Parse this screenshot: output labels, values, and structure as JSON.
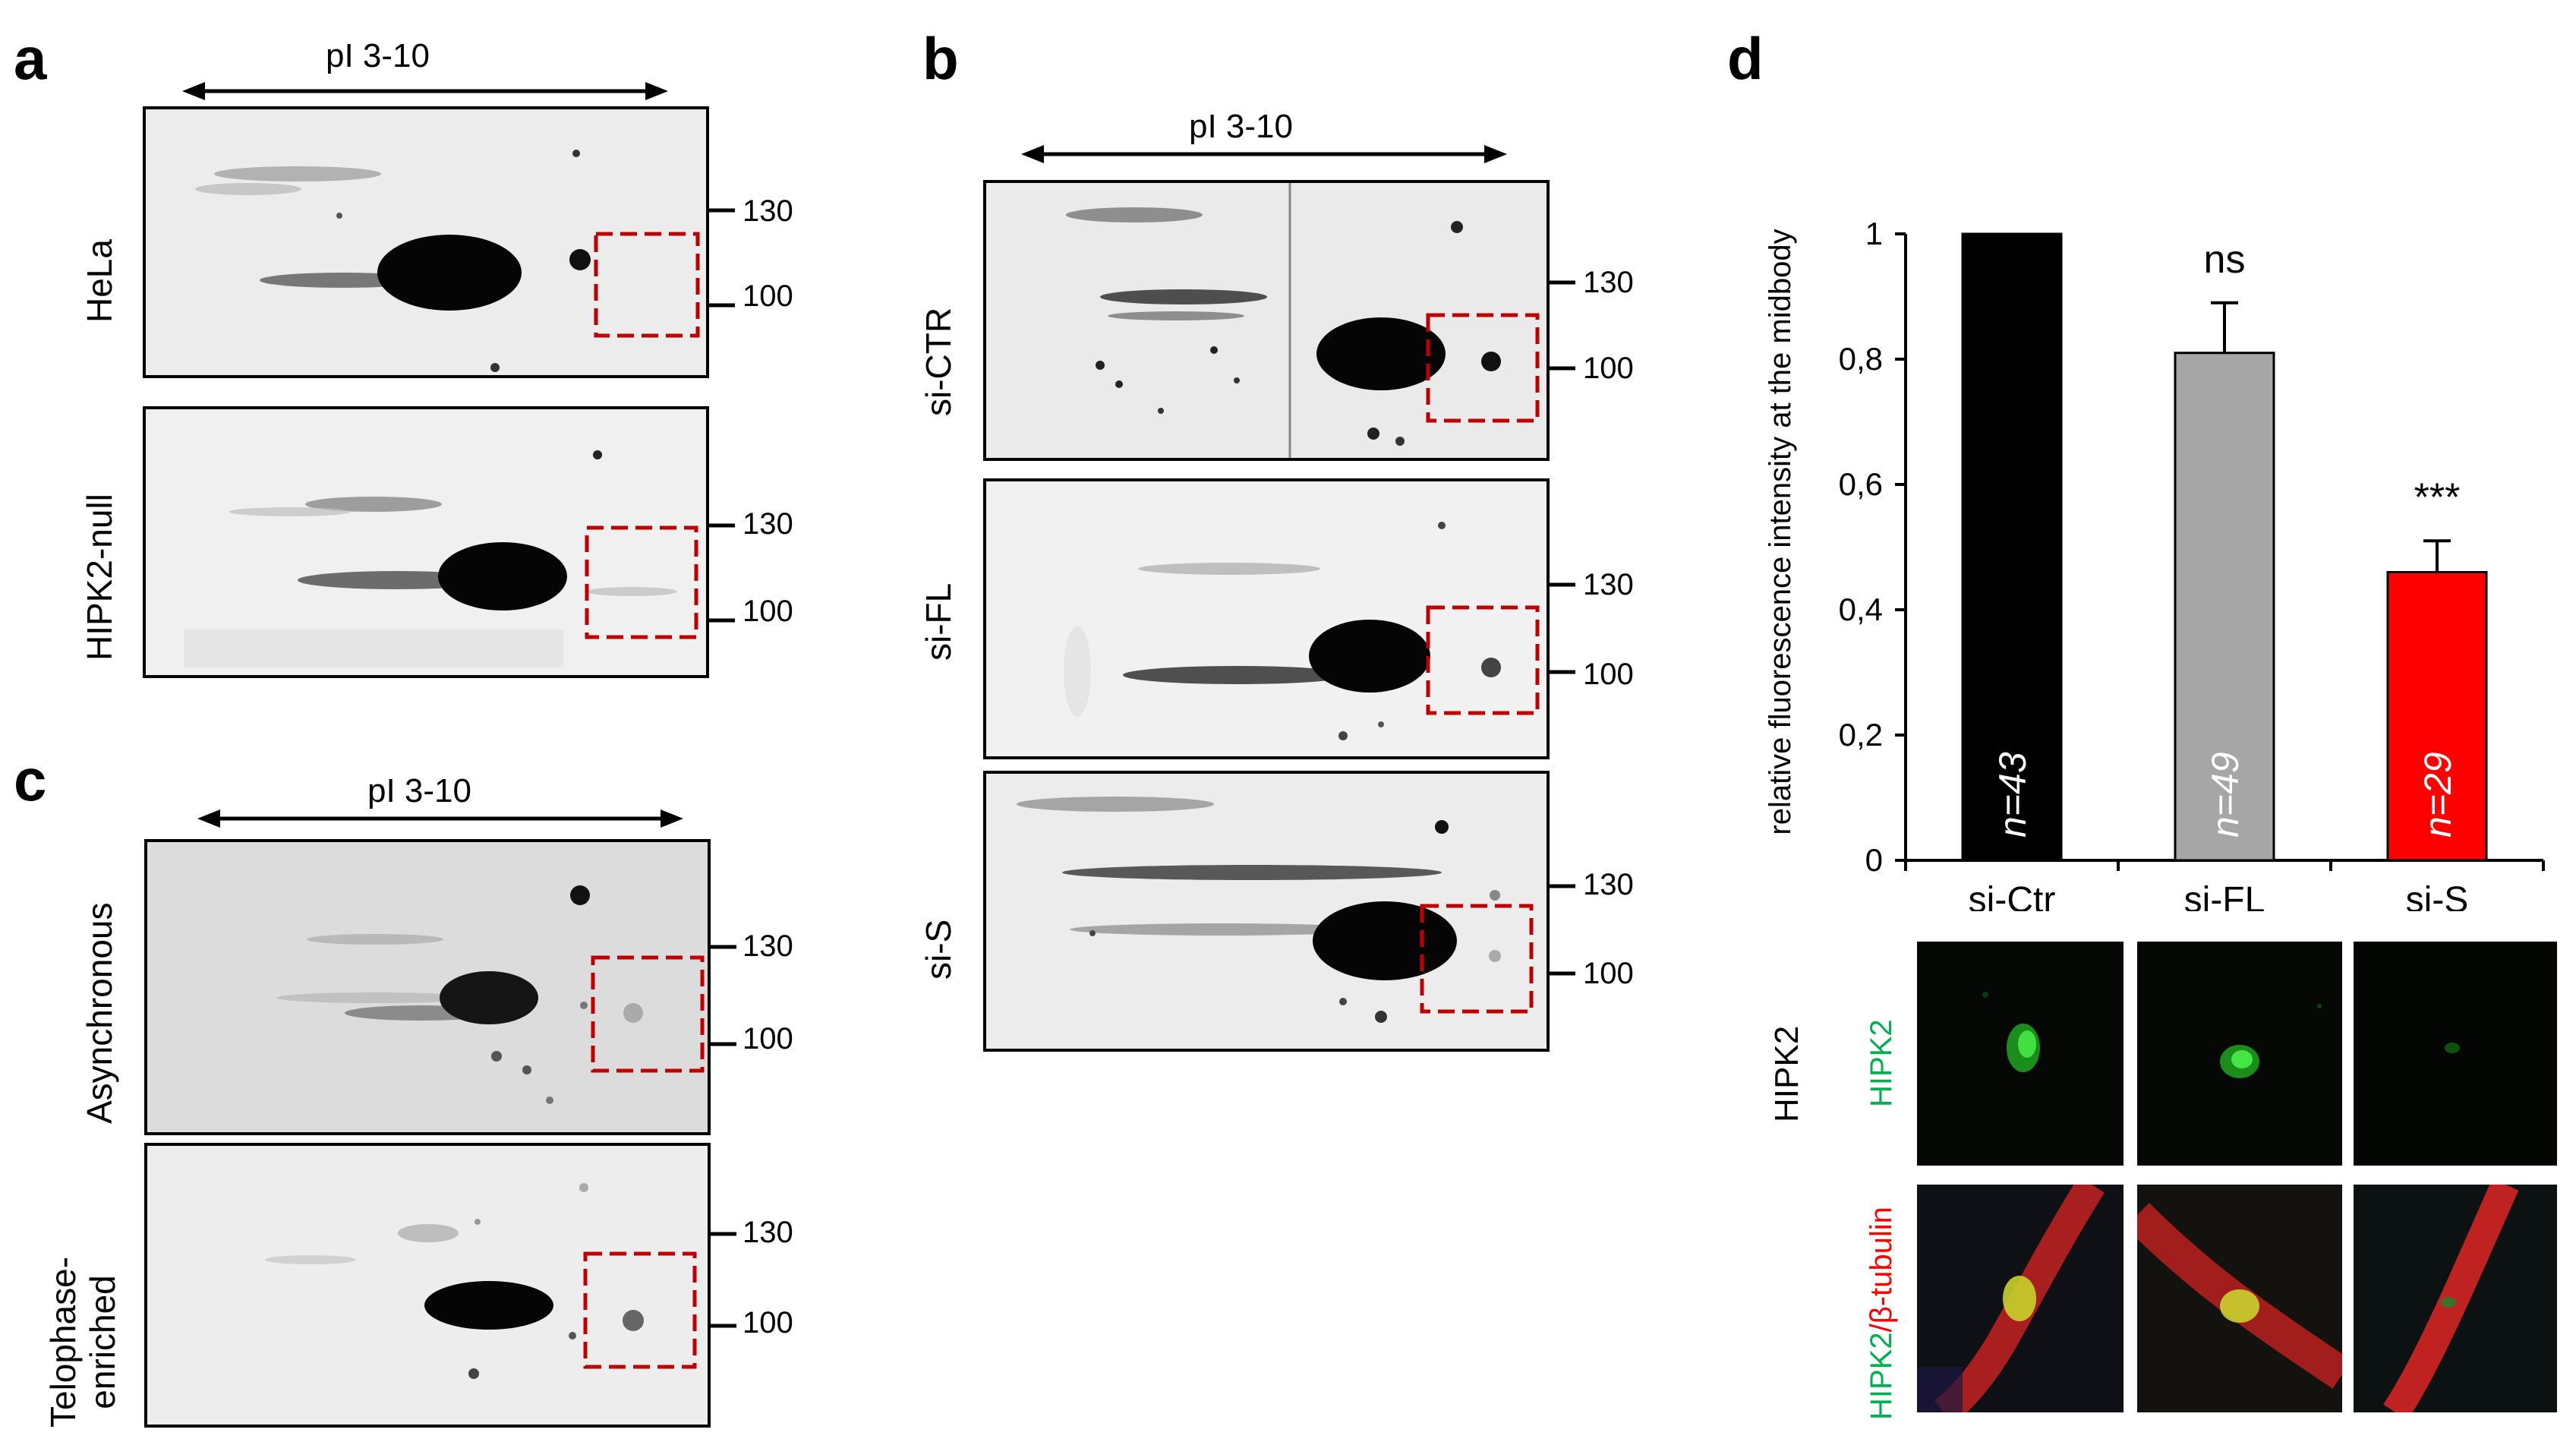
{
  "panels": {
    "a": {
      "letter": "a",
      "ph_range": "pI 3-10",
      "rows": [
        "HeLa",
        "HIPK2-null"
      ],
      "markers": [
        "130",
        "100"
      ]
    },
    "b": {
      "letter": "b",
      "ph_range": "pI 3-10",
      "rows": [
        "si-CTR",
        "si-FL",
        "si-S"
      ],
      "markers": [
        "130",
        "100"
      ]
    },
    "c": {
      "letter": "c",
      "ph_range": "pI 3-10",
      "rows": [
        "Asynchronous",
        "Telophase-",
        "enriched"
      ],
      "markers": [
        "130",
        "100"
      ]
    },
    "d": {
      "letter": "d",
      "image_row_label": "HIPK2",
      "channel_labels": {
        "hipk2": "HIPK2",
        "merge_a": "HIPK2",
        "merge_sep": "/",
        "merge_b": "β-tubulin"
      }
    }
  },
  "chart_data": {
    "type": "bar",
    "categories": [
      "si-Ctr",
      "si-FL",
      "si-S"
    ],
    "values": [
      1.0,
      0.81,
      0.46
    ],
    "errors": [
      0,
      0.08,
      0.05
    ],
    "bar_labels": [
      "n=43",
      "n=49",
      "n=29"
    ],
    "significance": [
      "",
      "ns",
      "***"
    ],
    "ylabel": "relative fluorescence intensity at the midbody",
    "ylim": [
      0,
      1
    ],
    "yticks": [
      "0",
      "0,2",
      "0,4",
      "0,6",
      "0,8",
      "1"
    ],
    "colors": [
      "#000000",
      "#a6a6a6",
      "#ff0000"
    ]
  }
}
